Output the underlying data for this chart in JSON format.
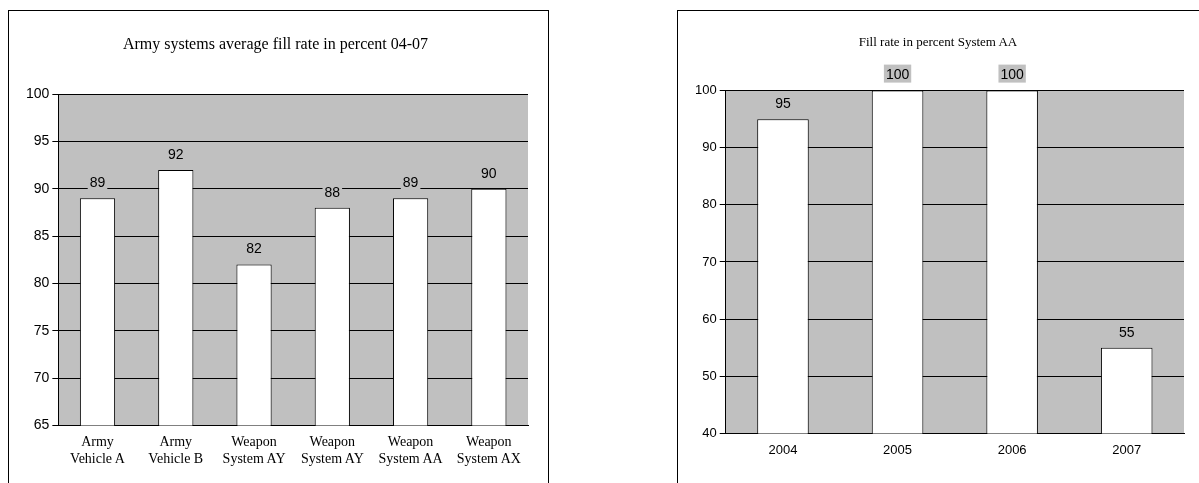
{
  "chart_data": [
    {
      "type": "bar",
      "title": "Army systems average fill rate in percent 04-07",
      "categories": [
        "Army Vehicle A",
        "Army Vehicle B",
        "Weapon System AY",
        "Weapon System AY",
        "Weapon System AA",
        "Weapon System AX"
      ],
      "values": [
        89,
        92,
        82,
        88,
        89,
        90
      ],
      "color": "#ffffff",
      "ylim": [
        65,
        100
      ],
      "yticks": [
        65,
        70,
        75,
        80,
        85,
        90,
        95,
        100
      ],
      "grid": "y",
      "data_labels": true
    },
    {
      "type": "bar",
      "title": "Fill rate in percent System AA",
      "categories": [
        "2004",
        "2005",
        "2006",
        "2007"
      ],
      "values": [
        95,
        100,
        100,
        55
      ],
      "color": "#ffffff",
      "ylim": [
        40,
        100
      ],
      "yticks": [
        40,
        50,
        60,
        70,
        80,
        90,
        100
      ],
      "grid": "y",
      "data_labels": true
    }
  ]
}
